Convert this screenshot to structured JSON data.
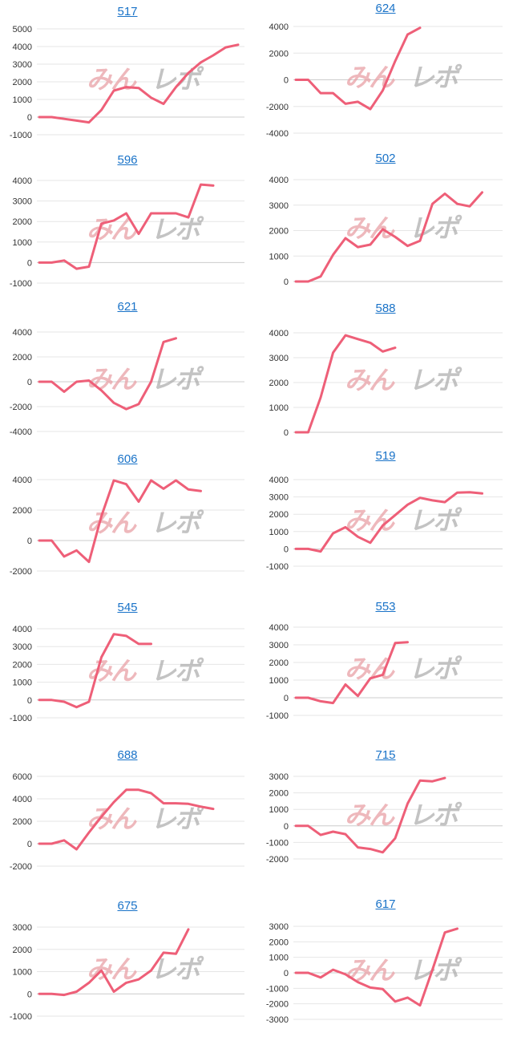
{
  "colors": {
    "line": "#ee5f78",
    "grid": "#e6e6e6",
    "axis": "#cccccc",
    "title": "#1a73c8",
    "watermark_pink": "#e8a0a6",
    "watermark_gray": "#a9a9a9"
  },
  "watermark": {
    "text": "みんレポ"
  },
  "chart_data": [
    {
      "type": "line",
      "title": "517",
      "ylim": [
        -1000,
        5000
      ],
      "ticks": [
        5000,
        4000,
        3000,
        2000,
        1000,
        0,
        -1000
      ],
      "values": [
        0,
        0,
        -100,
        -200,
        -300,
        400,
        1500,
        1700,
        1650,
        1100,
        750,
        1700,
        2500,
        3100,
        3500,
        3950,
        4100
      ]
    },
    {
      "type": "line",
      "title": "624",
      "ylim": [
        -4000,
        4000
      ],
      "ticks": [
        4000,
        2000,
        0,
        -2000,
        -4000
      ],
      "values": [
        0,
        0,
        -1000,
        -1000,
        -1800,
        -1650,
        -2200,
        -800,
        1400,
        3400,
        3900
      ]
    },
    {
      "type": "line",
      "title": "596",
      "ylim": [
        -1000,
        4000
      ],
      "ticks": [
        4000,
        3000,
        2000,
        1000,
        0,
        -1000
      ],
      "values": [
        0,
        0,
        100,
        -300,
        -200,
        1900,
        2050,
        2400,
        1400,
        2400,
        2400,
        2400,
        2200,
        3800,
        3750
      ]
    },
    {
      "type": "line",
      "title": "502",
      "ylim": [
        0,
        4000
      ],
      "ticks": [
        4000,
        3000,
        2000,
        1000,
        0
      ],
      "values": [
        0,
        0,
        200,
        1050,
        1700,
        1350,
        1450,
        2050,
        1750,
        1400,
        1600,
        3050,
        3450,
        3050,
        2950,
        3500
      ]
    },
    {
      "type": "line",
      "title": "621",
      "ylim": [
        -4000,
        4000
      ],
      "ticks": [
        4000,
        2000,
        0,
        -2000,
        -4000
      ],
      "values": [
        0,
        0,
        -800,
        0,
        100,
        -700,
        -1700,
        -2200,
        -1800,
        0,
        3200,
        3500
      ]
    },
    {
      "type": "line",
      "title": "588",
      "ylim": [
        0,
        4000
      ],
      "ticks": [
        4000,
        3000,
        2000,
        1000,
        0
      ],
      "values": [
        0,
        0,
        1400,
        3200,
        3900,
        3750,
        3600,
        3250,
        3400
      ]
    },
    {
      "type": "line",
      "title": "606",
      "ylim": [
        -2000,
        4000
      ],
      "ticks": [
        4000,
        2000,
        0,
        -2000
      ],
      "values": [
        0,
        0,
        -1050,
        -650,
        -1400,
        1600,
        3950,
        3700,
        2550,
        3950,
        3400,
        3950,
        3350,
        3250
      ]
    },
    {
      "type": "line",
      "title": "519",
      "ylim": [
        -1000,
        4000
      ],
      "ticks": [
        4000,
        3000,
        2000,
        1000,
        0,
        -1000
      ],
      "values": [
        0,
        0,
        -150,
        900,
        1250,
        700,
        350,
        1350,
        1950,
        2550,
        2950,
        2800,
        2700,
        3250,
        3270,
        3200
      ]
    },
    {
      "type": "line",
      "title": "545",
      "ylim": [
        -1000,
        4000
      ],
      "ticks": [
        4000,
        3000,
        2000,
        1000,
        0,
        -1000
      ],
      "values": [
        0,
        0,
        -100,
        -400,
        -100,
        2400,
        3700,
        3600,
        3150,
        3150
      ]
    },
    {
      "type": "line",
      "title": "553",
      "ylim": [
        -1000,
        4000
      ],
      "ticks": [
        4000,
        3000,
        2000,
        1000,
        0,
        -1000
      ],
      "values": [
        0,
        0,
        -200,
        -300,
        750,
        100,
        1100,
        1300,
        3100,
        3150
      ]
    },
    {
      "type": "line",
      "title": "688",
      "ylim": [
        -2000,
        6000
      ],
      "ticks": [
        6000,
        4000,
        2000,
        0,
        -2000
      ],
      "values": [
        0,
        0,
        300,
        -500,
        1000,
        2400,
        3700,
        4800,
        4800,
        4500,
        3600,
        3600,
        3550,
        3300,
        3100
      ]
    },
    {
      "type": "line",
      "title": "715",
      "ylim": [
        -2000,
        3000
      ],
      "ticks": [
        3000,
        2000,
        1000,
        0,
        -1000,
        -2000
      ],
      "values": [
        0,
        0,
        -550,
        -350,
        -500,
        -1300,
        -1400,
        -1600,
        -750,
        1350,
        2750,
        2700,
        2900
      ]
    },
    {
      "type": "line",
      "title": "675",
      "ylim": [
        -1000,
        3000
      ],
      "ticks": [
        3000,
        2000,
        1000,
        0,
        -1000
      ],
      "values": [
        0,
        0,
        -50,
        100,
        500,
        1050,
        100,
        500,
        650,
        1050,
        1850,
        1800,
        2900
      ]
    },
    {
      "type": "line",
      "title": "617",
      "ylim": [
        -3000,
        3000
      ],
      "ticks": [
        3000,
        2000,
        1000,
        0,
        -1000,
        -2000,
        -3000
      ],
      "values": [
        0,
        0,
        -300,
        200,
        -100,
        -600,
        -950,
        -1050,
        -1850,
        -1600,
        -2100,
        200,
        2600,
        2850
      ]
    }
  ]
}
